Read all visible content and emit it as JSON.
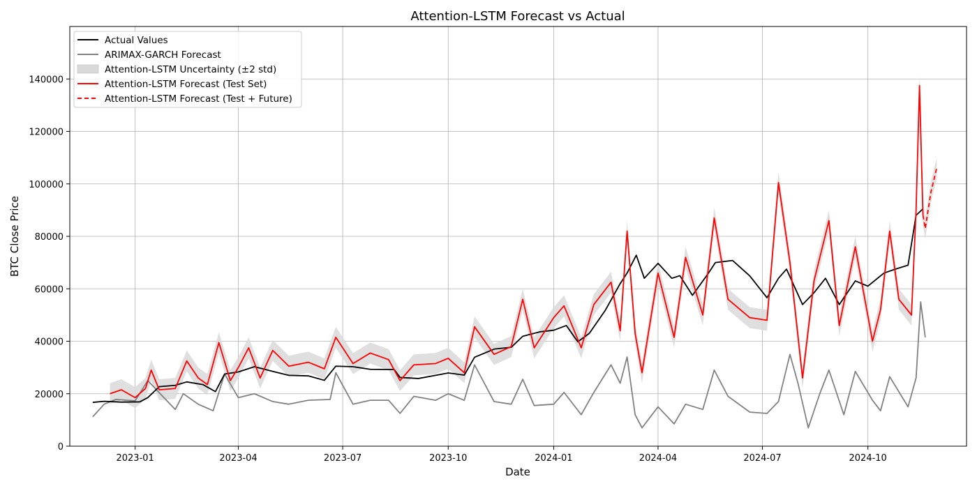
{
  "chart_data": {
    "type": "line",
    "title": "Attention-LSTM Forecast vs Actual",
    "xlabel": "Date",
    "ylabel": "BTC Close Price",
    "xlim": [
      "2022-11-05",
      "2024-12-26"
    ],
    "ylim": [
      0,
      160000
    ],
    "x_ticks": [
      "2023-01",
      "2023-04",
      "2023-07",
      "2023-10",
      "2024-01",
      "2024-04",
      "2024-07",
      "2024-10"
    ],
    "x_tick_dates": [
      "2023-01-01",
      "2023-04-01",
      "2023-07-01",
      "2023-10-01",
      "2024-01-01",
      "2024-04-01",
      "2024-07-01",
      "2024-10-01"
    ],
    "y_ticks": [
      0,
      20000,
      40000,
      60000,
      80000,
      100000,
      120000,
      140000
    ],
    "grid": true,
    "legend_position": "top-left",
    "colors": {
      "actual": "#000000",
      "arimax": "#808080",
      "band": "#d9d9d9",
      "lstm": "#ff0000"
    },
    "series": [
      {
        "name": "Actual Values",
        "style": "solid",
        "color": "#000000",
        "points": [
          [
            "2022-11-25",
            16700
          ],
          [
            "2022-12-05",
            17100
          ],
          [
            "2022-12-20",
            16800
          ],
          [
            "2023-01-05",
            16900
          ],
          [
            "2023-01-12",
            18500
          ],
          [
            "2023-01-22",
            22700
          ],
          [
            "2023-02-05",
            23200
          ],
          [
            "2023-02-15",
            24500
          ],
          [
            "2023-03-01",
            23500
          ],
          [
            "2023-03-12",
            20800
          ],
          [
            "2023-03-20",
            27500
          ],
          [
            "2023-04-01",
            28300
          ],
          [
            "2023-04-15",
            30300
          ],
          [
            "2023-05-01",
            28500
          ],
          [
            "2023-05-15",
            27000
          ],
          [
            "2023-06-01",
            26800
          ],
          [
            "2023-06-15",
            25100
          ],
          [
            "2023-06-25",
            30500
          ],
          [
            "2023-07-10",
            30300
          ],
          [
            "2023-07-25",
            29300
          ],
          [
            "2023-08-15",
            29200
          ],
          [
            "2023-08-20",
            26200
          ],
          [
            "2023-09-05",
            25800
          ],
          [
            "2023-09-20",
            27000
          ],
          [
            "2023-10-01",
            27900
          ],
          [
            "2023-10-15",
            27100
          ],
          [
            "2023-10-24",
            33900
          ],
          [
            "2023-11-10",
            37000
          ],
          [
            "2023-11-25",
            37700
          ],
          [
            "2023-12-05",
            41900
          ],
          [
            "2023-12-20",
            43600
          ],
          [
            "2024-01-01",
            44200
          ],
          [
            "2024-01-12",
            46000
          ],
          [
            "2024-01-22",
            39800
          ],
          [
            "2024-02-01",
            43000
          ],
          [
            "2024-02-15",
            51800
          ],
          [
            "2024-02-28",
            62000
          ],
          [
            "2024-03-05",
            66000
          ],
          [
            "2024-03-13",
            72800
          ],
          [
            "2024-03-20",
            64000
          ],
          [
            "2024-04-01",
            69700
          ],
          [
            "2024-04-13",
            64000
          ],
          [
            "2024-04-20",
            65000
          ],
          [
            "2024-05-01",
            57500
          ],
          [
            "2024-05-15",
            66000
          ],
          [
            "2024-05-21",
            70000
          ],
          [
            "2024-06-05",
            70800
          ],
          [
            "2024-06-20",
            64900
          ],
          [
            "2024-07-05",
            56600
          ],
          [
            "2024-07-15",
            64000
          ],
          [
            "2024-07-22",
            67500
          ],
          [
            "2024-08-05",
            54000
          ],
          [
            "2024-08-15",
            58500
          ],
          [
            "2024-08-25",
            64000
          ],
          [
            "2024-09-06",
            54000
          ],
          [
            "2024-09-20",
            63000
          ],
          [
            "2024-10-01",
            61000
          ],
          [
            "2024-10-15",
            66000
          ],
          [
            "2024-10-25",
            67500
          ],
          [
            "2024-11-05",
            69000
          ],
          [
            "2024-11-12",
            88000
          ],
          [
            "2024-11-18",
            90500
          ]
        ]
      },
      {
        "name": "ARIMAX-GARCH Forecast",
        "style": "solid",
        "color": "#808080",
        "points": [
          [
            "2022-11-25",
            11200
          ],
          [
            "2022-12-05",
            16000
          ],
          [
            "2022-12-15",
            17800
          ],
          [
            "2023-01-01",
            17300
          ],
          [
            "2023-01-12",
            25000
          ],
          [
            "2023-01-25",
            19000
          ],
          [
            "2023-02-05",
            14000
          ],
          [
            "2023-02-12",
            20000
          ],
          [
            "2023-02-25",
            16000
          ],
          [
            "2023-03-10",
            13500
          ],
          [
            "2023-03-20",
            27500
          ],
          [
            "2023-04-01",
            18500
          ],
          [
            "2023-04-15",
            20000
          ],
          [
            "2023-05-01",
            17000
          ],
          [
            "2023-05-15",
            16000
          ],
          [
            "2023-06-01",
            17500
          ],
          [
            "2023-06-20",
            17800
          ],
          [
            "2023-06-25",
            28000
          ],
          [
            "2023-07-10",
            16000
          ],
          [
            "2023-07-25",
            17500
          ],
          [
            "2023-08-10",
            17500
          ],
          [
            "2023-08-20",
            12500
          ],
          [
            "2023-09-01",
            19000
          ],
          [
            "2023-09-20",
            17500
          ],
          [
            "2023-10-01",
            20000
          ],
          [
            "2023-10-15",
            17500
          ],
          [
            "2023-10-24",
            31000
          ],
          [
            "2023-11-10",
            17000
          ],
          [
            "2023-11-25",
            16000
          ],
          [
            "2023-12-05",
            25500
          ],
          [
            "2023-12-15",
            15500
          ],
          [
            "2024-01-01",
            16000
          ],
          [
            "2024-01-10",
            20500
          ],
          [
            "2024-01-25",
            12000
          ],
          [
            "2024-02-05",
            20500
          ],
          [
            "2024-02-20",
            31000
          ],
          [
            "2024-02-28",
            24000
          ],
          [
            "2024-03-05",
            34000
          ],
          [
            "2024-03-12",
            12000
          ],
          [
            "2024-03-18",
            7000
          ],
          [
            "2024-04-01",
            15000
          ],
          [
            "2024-04-15",
            8500
          ],
          [
            "2024-04-25",
            16000
          ],
          [
            "2024-05-10",
            14000
          ],
          [
            "2024-05-20",
            29000
          ],
          [
            "2024-06-01",
            19000
          ],
          [
            "2024-06-20",
            13000
          ],
          [
            "2024-07-05",
            12500
          ],
          [
            "2024-07-15",
            17000
          ],
          [
            "2024-07-25",
            35000
          ],
          [
            "2024-08-01",
            24000
          ],
          [
            "2024-08-10",
            7000
          ],
          [
            "2024-08-20",
            20000
          ],
          [
            "2024-08-28",
            29000
          ],
          [
            "2024-09-10",
            12000
          ],
          [
            "2024-09-20",
            28500
          ],
          [
            "2024-10-05",
            17500
          ],
          [
            "2024-10-12",
            13500
          ],
          [
            "2024-10-20",
            26500
          ],
          [
            "2024-11-05",
            15000
          ],
          [
            "2024-11-12",
            26000
          ],
          [
            "2024-11-16",
            55000
          ],
          [
            "2024-11-20",
            41500
          ]
        ]
      },
      {
        "name": "Attention-LSTM Uncertainty (±2 std)",
        "style": "band",
        "color": "#d9d9d9",
        "band_width": 4000
      },
      {
        "name": "Attention-LSTM Forecast (Test Set)",
        "style": "solid",
        "color": "#ff0000",
        "points": [
          [
            "2022-12-10",
            20000
          ],
          [
            "2022-12-20",
            21500
          ],
          [
            "2023-01-01",
            18500
          ],
          [
            "2023-01-10",
            22000
          ],
          [
            "2023-01-15",
            29000
          ],
          [
            "2023-01-22",
            21500
          ],
          [
            "2023-02-05",
            22000
          ],
          [
            "2023-02-15",
            32500
          ],
          [
            "2023-02-25",
            26000
          ],
          [
            "2023-03-05",
            23500
          ],
          [
            "2023-03-15",
            39500
          ],
          [
            "2023-03-25",
            25000
          ],
          [
            "2023-04-01",
            30000
          ],
          [
            "2023-04-10",
            37500
          ],
          [
            "2023-04-20",
            26000
          ],
          [
            "2023-05-01",
            36500
          ],
          [
            "2023-05-15",
            30500
          ],
          [
            "2023-06-01",
            32000
          ],
          [
            "2023-06-15",
            29500
          ],
          [
            "2023-06-25",
            41500
          ],
          [
            "2023-07-10",
            31500
          ],
          [
            "2023-07-25",
            35500
          ],
          [
            "2023-08-10",
            33000
          ],
          [
            "2023-08-20",
            25000
          ],
          [
            "2023-09-01",
            31000
          ],
          [
            "2023-09-20",
            31500
          ],
          [
            "2023-10-01",
            33500
          ],
          [
            "2023-10-15",
            28000
          ],
          [
            "2023-10-24",
            45500
          ],
          [
            "2023-11-10",
            35000
          ],
          [
            "2023-11-25",
            38000
          ],
          [
            "2023-12-05",
            56000
          ],
          [
            "2023-12-15",
            37500
          ],
          [
            "2024-01-01",
            49000
          ],
          [
            "2024-01-10",
            53500
          ],
          [
            "2024-01-25",
            37500
          ],
          [
            "2024-02-05",
            54000
          ],
          [
            "2024-02-20",
            62500
          ],
          [
            "2024-02-28",
            44000
          ],
          [
            "2024-03-05",
            82000
          ],
          [
            "2024-03-12",
            43000
          ],
          [
            "2024-03-18",
            28000
          ],
          [
            "2024-04-01",
            66000
          ],
          [
            "2024-04-15",
            41500
          ],
          [
            "2024-04-25",
            72000
          ],
          [
            "2024-05-10",
            50000
          ],
          [
            "2024-05-20",
            87000
          ],
          [
            "2024-06-01",
            56000
          ],
          [
            "2024-06-20",
            49000
          ],
          [
            "2024-07-05",
            48000
          ],
          [
            "2024-07-15",
            100500
          ],
          [
            "2024-07-25",
            70000
          ],
          [
            "2024-08-05",
            26000
          ],
          [
            "2024-08-15",
            63000
          ],
          [
            "2024-08-28",
            86000
          ],
          [
            "2024-09-06",
            46000
          ],
          [
            "2024-09-20",
            76000
          ],
          [
            "2024-10-05",
            40000
          ],
          [
            "2024-10-12",
            52000
          ],
          [
            "2024-10-20",
            82000
          ],
          [
            "2024-10-28",
            56000
          ],
          [
            "2024-11-08",
            50000
          ],
          [
            "2024-11-12",
            90000
          ],
          [
            "2024-11-15",
            137500
          ],
          [
            "2024-11-18",
            88000
          ]
        ]
      },
      {
        "name": "Attention-LSTM Forecast (Test + Future)",
        "style": "dashed",
        "color": "#ff0000",
        "points": [
          [
            "2024-11-18",
            88000
          ],
          [
            "2024-11-20",
            83000
          ],
          [
            "2024-11-25",
            97000
          ],
          [
            "2024-11-30",
            106000
          ]
        ]
      }
    ]
  }
}
